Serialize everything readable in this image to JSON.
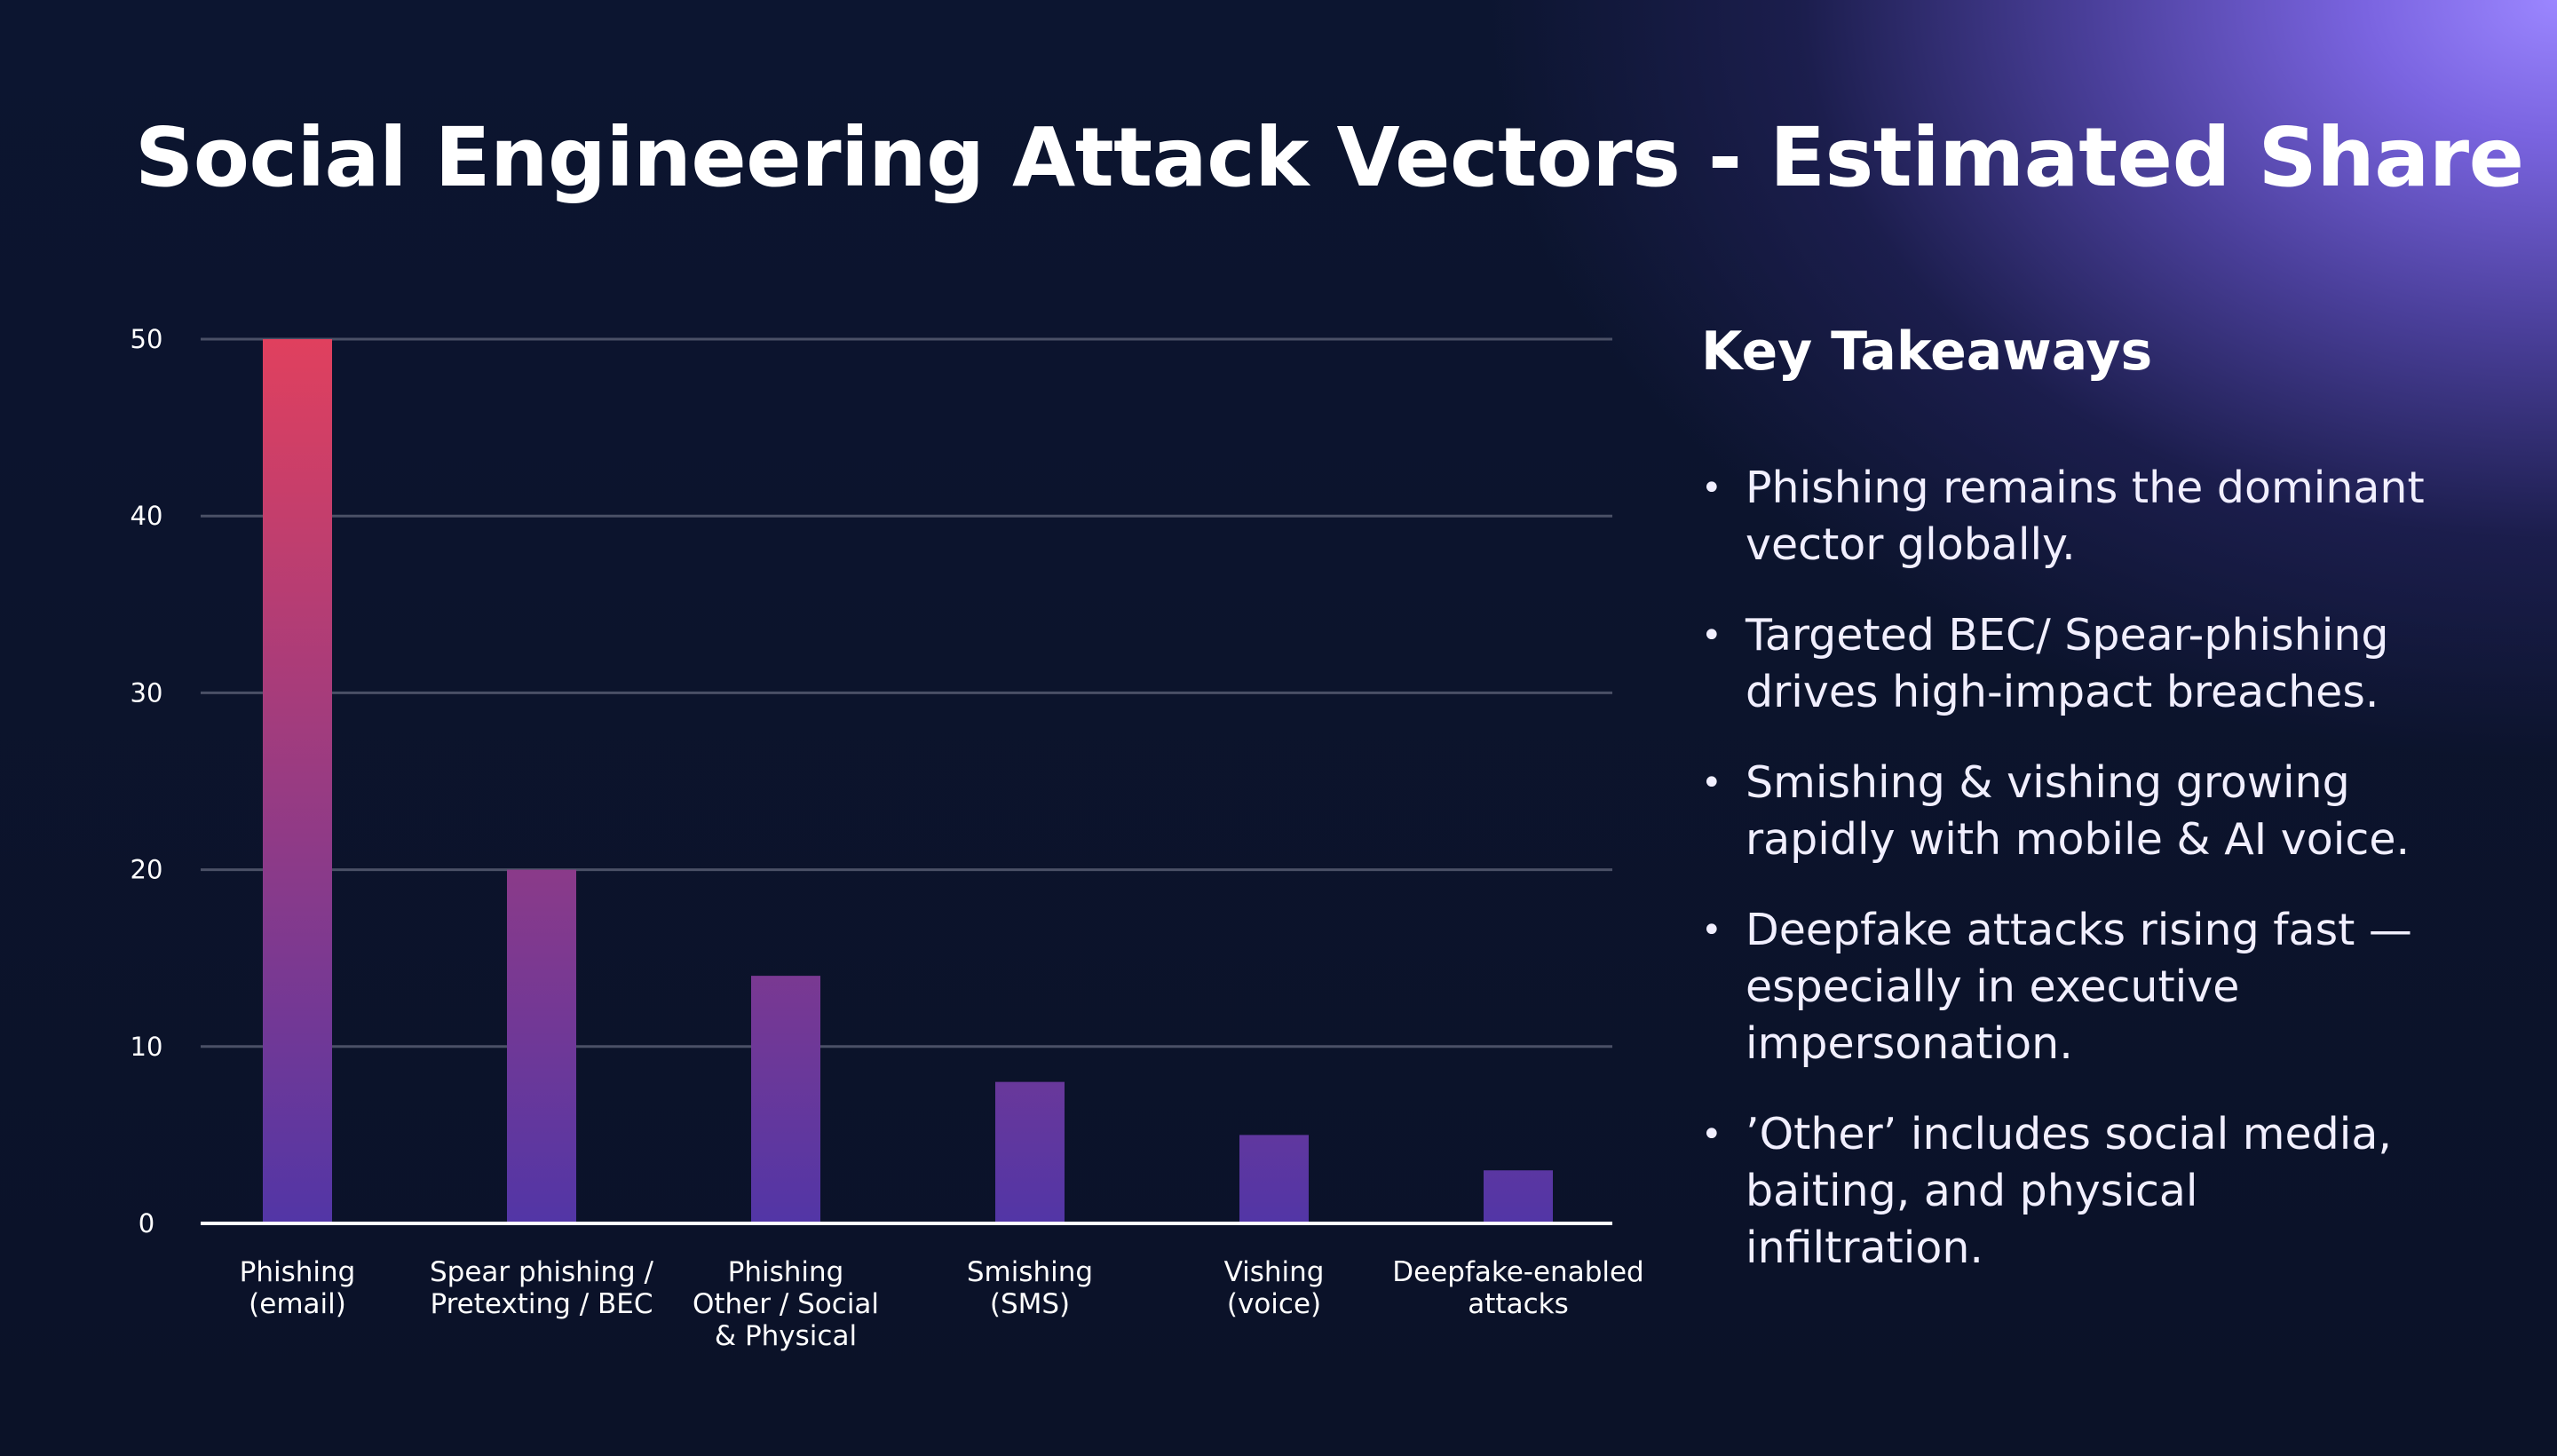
{
  "title": "Social Engineering Attack Vectors - Estimated Share",
  "colors": {
    "bar_top": "#e0405e",
    "bar_bottom": "#5236a6",
    "grid": "#4a5066",
    "axis": "#ffffff",
    "background": "#0b1228",
    "accent": "#9b86ff"
  },
  "chart_data": {
    "type": "bar",
    "categories": [
      [
        "Phishing",
        "(email)"
      ],
      [
        "Spear phishing /",
        "Pretexting / BEC"
      ],
      [
        "Phishing",
        "Other / Social",
        "& Physical"
      ],
      [
        "Smishing",
        "(SMS)"
      ],
      [
        "Vishing",
        "(voice)"
      ],
      [
        "Deepfake-enabled",
        "attacks"
      ]
    ],
    "values": [
      50,
      20,
      14,
      8,
      5,
      3
    ],
    "yticks": [
      0,
      10,
      20,
      30,
      40,
      50
    ],
    "ylim": [
      0,
      50
    ],
    "grid": true
  },
  "takeaways": {
    "heading": "Key Takeaways",
    "items": [
      "Phishing remains the dominant vector globally.",
      "Targeted BEC/ Spear-phishing drives high-impact breaches.",
      "Smishing & vishing growing rapidly with mobile & AI voice.",
      "Deepfake attacks rising fast — especially in executive impersonation.",
      "’Other’ includes social media, baiting, and physical infiltration."
    ]
  }
}
